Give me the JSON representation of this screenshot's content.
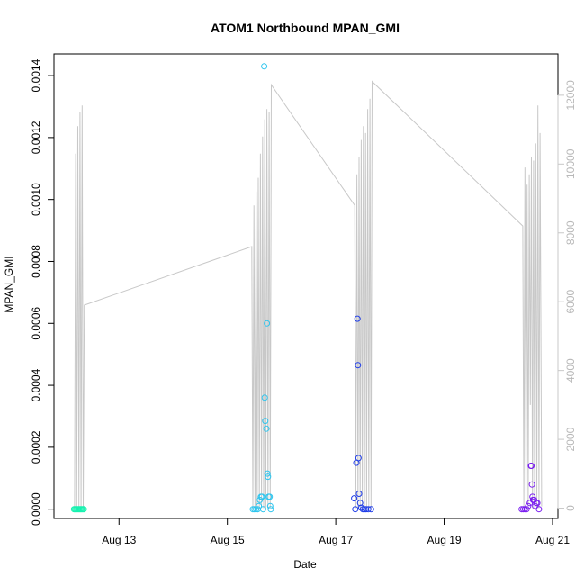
{
  "chart_data": {
    "type": "scatter",
    "title": "ATOM1 Northbound MPAN_GMI",
    "xlabel": "Date",
    "ylabel": "MPAN_GMI",
    "x_unit": "days (August)",
    "xlim": [
      11.8,
      21.1
    ],
    "ylim": [
      -3e-05,
      0.00147
    ],
    "x_ticks": [
      {
        "value": 13,
        "label": "Aug 13"
      },
      {
        "value": 15,
        "label": "Aug 15"
      },
      {
        "value": 17,
        "label": "Aug 17"
      },
      {
        "value": 19,
        "label": "Aug 19"
      },
      {
        "value": 21,
        "label": "Aug 21"
      }
    ],
    "y_ticks": [
      {
        "value": 0.0,
        "label": "0.0000"
      },
      {
        "value": 0.0002,
        "label": "0.0002"
      },
      {
        "value": 0.0004,
        "label": "0.0004"
      },
      {
        "value": 0.0006,
        "label": "0.0006"
      },
      {
        "value": 0.0008,
        "label": "0.0008"
      },
      {
        "value": 0.001,
        "label": "0.0010"
      },
      {
        "value": 0.0012,
        "label": "0.0012"
      },
      {
        "value": 0.0014,
        "label": "0.0014"
      }
    ],
    "secondary_axis": {
      "color": "#c8c8c8",
      "ylim": [
        -300,
        13200
      ],
      "ticks": [
        {
          "value": 0,
          "label": "0"
        },
        {
          "value": 2000,
          "label": "2000"
        },
        {
          "value": 4000,
          "label": "4000"
        },
        {
          "value": 6000,
          "label": "6000"
        },
        {
          "value": 8000,
          "label": "8000"
        },
        {
          "value": 10000,
          "label": "10000"
        },
        {
          "value": 12000,
          "label": "12000"
        }
      ]
    },
    "line_series": {
      "color": "#c8c8c8",
      "points": [
        [
          12.18,
          0
        ],
        [
          12.2,
          10300
        ],
        [
          12.22,
          0
        ],
        [
          12.24,
          11100
        ],
        [
          12.26,
          0
        ],
        [
          12.28,
          11500
        ],
        [
          12.3,
          0
        ],
        [
          12.32,
          11700
        ],
        [
          12.34,
          0
        ],
        [
          12.36,
          5900
        ],
        [
          15.45,
          7600
        ],
        [
          15.47,
          0
        ],
        [
          15.49,
          8800
        ],
        [
          15.51,
          0
        ],
        [
          15.53,
          9200
        ],
        [
          15.55,
          0
        ],
        [
          15.57,
          9600
        ],
        [
          15.59,
          0
        ],
        [
          15.61,
          10300
        ],
        [
          15.63,
          0
        ],
        [
          15.65,
          10800
        ],
        [
          15.67,
          0
        ],
        [
          15.69,
          11300
        ],
        [
          15.71,
          0
        ],
        [
          15.73,
          11600
        ],
        [
          15.75,
          0
        ],
        [
          15.77,
          11500
        ],
        [
          15.79,
          0
        ],
        [
          15.81,
          12300
        ],
        [
          17.35,
          8800
        ],
        [
          17.37,
          0
        ],
        [
          17.39,
          9700
        ],
        [
          17.41,
          0
        ],
        [
          17.43,
          10200
        ],
        [
          17.45,
          0
        ],
        [
          17.47,
          10700
        ],
        [
          17.49,
          0
        ],
        [
          17.51,
          11100
        ],
        [
          17.53,
          0
        ],
        [
          17.55,
          10900
        ],
        [
          17.57,
          0
        ],
        [
          17.59,
          11600
        ],
        [
          17.61,
          0
        ],
        [
          17.63,
          11900
        ],
        [
          17.65,
          0
        ],
        [
          17.67,
          12400
        ],
        [
          20.45,
          8200
        ],
        [
          20.47,
          0
        ],
        [
          20.49,
          9900
        ],
        [
          20.51,
          0
        ],
        [
          20.53,
          9400
        ],
        [
          20.55,
          0
        ],
        [
          20.57,
          9700
        ],
        [
          20.59,
          3000
        ],
        [
          20.61,
          10200
        ],
        [
          20.63,
          0
        ],
        [
          20.65,
          10100
        ],
        [
          20.67,
          0
        ],
        [
          20.69,
          10600
        ],
        [
          20.71,
          0
        ],
        [
          20.73,
          11700
        ],
        [
          20.75,
          0
        ],
        [
          20.77,
          10900
        ],
        [
          20.8,
          50
        ]
      ]
    },
    "point_series": [
      {
        "color": "#17f2b0",
        "points": [
          [
            12.17,
            0
          ],
          [
            12.19,
            0
          ],
          [
            12.21,
            0
          ],
          [
            12.23,
            0
          ],
          [
            12.25,
            0
          ],
          [
            12.27,
            0
          ],
          [
            12.29,
            0
          ],
          [
            12.31,
            0
          ],
          [
            12.33,
            0
          ],
          [
            12.35,
            0
          ]
        ]
      },
      {
        "color": "#2ec5ee",
        "points": [
          [
            15.47,
            0
          ],
          [
            15.5,
            0
          ],
          [
            15.53,
            0
          ],
          [
            15.56,
            0
          ],
          [
            15.58,
            1e-05
          ],
          [
            15.6,
            3e-05
          ],
          [
            15.62,
            4e-05
          ],
          [
            15.64,
            4e-05
          ],
          [
            15.66,
            0
          ],
          [
            15.68,
            0.00143
          ],
          [
            15.69,
            0.00036
          ],
          [
            15.7,
            0.000285
          ],
          [
            15.72,
            0.00026
          ],
          [
            15.73,
            0.0006
          ],
          [
            15.74,
            0.000115
          ],
          [
            15.75,
            0.000105
          ],
          [
            15.76,
            4e-05
          ],
          [
            15.78,
            4e-05
          ],
          [
            15.79,
            1e-05
          ],
          [
            15.8,
            0
          ]
        ]
      },
      {
        "color": "#1f3de8",
        "points": [
          [
            17.34,
            3.5e-05
          ],
          [
            17.36,
            0
          ],
          [
            17.38,
            0.00015
          ],
          [
            17.4,
            0.000615
          ],
          [
            17.41,
            0.000465
          ],
          [
            17.42,
            0.000165
          ],
          [
            17.43,
            5e-05
          ],
          [
            17.45,
            2e-05
          ],
          [
            17.47,
            5e-06
          ],
          [
            17.5,
            0
          ],
          [
            17.53,
            0
          ],
          [
            17.56,
            0
          ],
          [
            17.6,
            0
          ],
          [
            17.65,
            0
          ]
        ]
      },
      {
        "color": "#7a1ef0",
        "points": [
          [
            20.43,
            0
          ],
          [
            20.46,
            0
          ],
          [
            20.49,
            0
          ],
          [
            20.52,
            0
          ],
          [
            20.55,
            1e-05
          ],
          [
            20.58,
            2e-05
          ],
          [
            20.6,
            0.00014
          ],
          [
            20.61,
            0.00014
          ],
          [
            20.62,
            8e-05
          ],
          [
            20.63,
            4e-05
          ],
          [
            20.64,
            3e-05
          ],
          [
            20.66,
            3e-05
          ],
          [
            20.68,
            1e-05
          ],
          [
            20.7,
            2e-05
          ],
          [
            20.72,
            2e-05
          ],
          [
            20.75,
            0
          ]
        ]
      }
    ]
  }
}
